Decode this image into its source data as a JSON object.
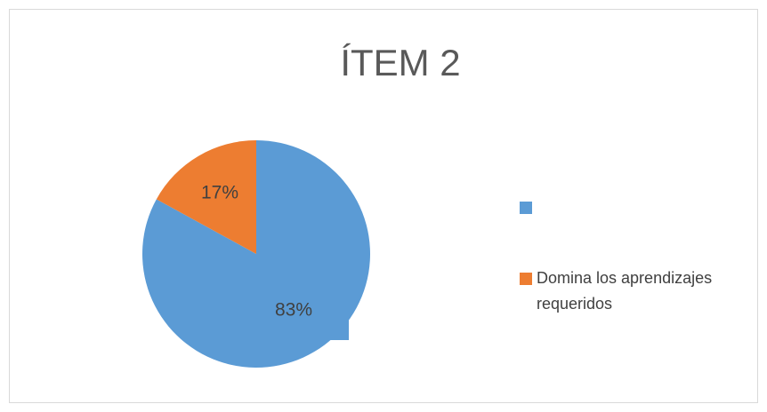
{
  "chart_data": {
    "type": "pie",
    "title": "ÍTEM 2",
    "categories": [
      null,
      "Domina los aprendizajes requeridos"
    ],
    "values": [
      83,
      17
    ],
    "value_labels": [
      "83%",
      "17%"
    ],
    "colors": [
      "#5b9bd5",
      "#ed7d31"
    ],
    "legend": "right"
  }
}
